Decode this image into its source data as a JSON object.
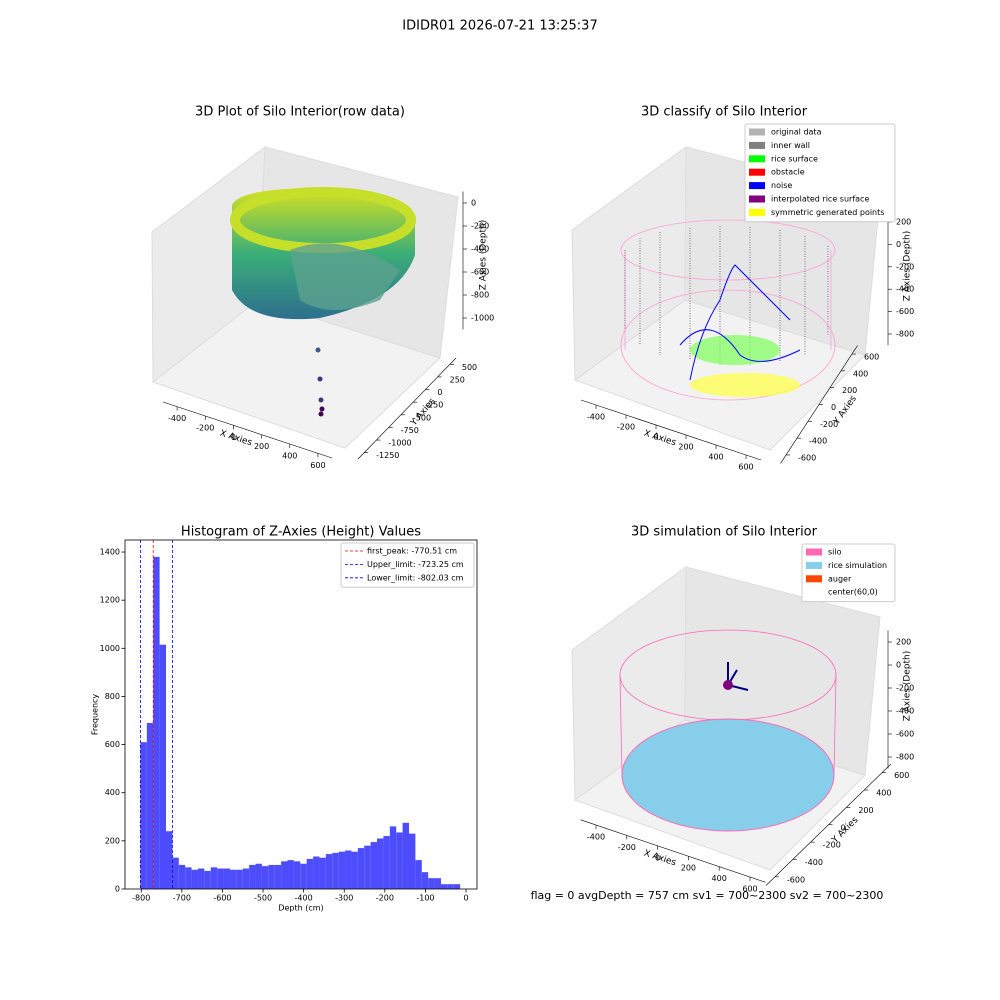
{
  "title": "IDIDR01 2026-07-21 13:25:37",
  "footer": "flag = 0     avgDepth = 757 cm  sv1 = 700~2300  sv2 = 700~2300",
  "chart_data": [
    {
      "type": "scatter3d",
      "title": "3D Plot of Silo Interior(row data)",
      "xlabel": "X Axies",
      "ylabel": "Y Axies",
      "zlabel": "Z Axies (Depth)",
      "xlim": [
        -500,
        700
      ],
      "ylim": [
        625,
        -1375
      ],
      "zlim": [
        100,
        -1100
      ],
      "xticks": [
        -400,
        -200,
        0,
        200,
        400,
        600
      ],
      "yticks": [
        500,
        250,
        0,
        -250,
        -500,
        -750,
        -1000,
        -1250
      ],
      "zticks": [
        0,
        -200,
        -400,
        -600,
        -800,
        -1000
      ]
    },
    {
      "type": "scatter3d",
      "title": "3D classify of Silo Interior",
      "xlabel": "X Axies",
      "ylabel": "Y Axies",
      "zlabel": "Z Axies (Depth)",
      "xlim": [
        -500,
        700
      ],
      "ylim": [
        700,
        -700
      ],
      "zlim": [
        300,
        -900
      ],
      "xticks": [
        -400,
        -200,
        0,
        200,
        400,
        600
      ],
      "yticks": [
        600,
        400,
        200,
        0,
        -200,
        -400,
        -600
      ],
      "zticks": [
        200,
        0,
        -200,
        -400,
        -600,
        -800
      ],
      "legend": "upper right",
      "series": [
        {
          "name": "original data",
          "color": "#b3b3b3"
        },
        {
          "name": "inner wall",
          "color": "#808080"
        },
        {
          "name": "rice surface",
          "color": "#00ff00"
        },
        {
          "name": "obstacle",
          "color": "#ff0000"
        },
        {
          "name": "noise",
          "color": "#0000ff"
        },
        {
          "name": "interpolated rice surface",
          "color": "#800080"
        },
        {
          "name": "symmetric generated points",
          "color": "#ffff00"
        }
      ]
    },
    {
      "type": "histogram",
      "title": "Histogram of Z-Axies (Height) Values",
      "xlabel": "Depth (cm)",
      "ylabel": "Frequency",
      "color": "#4d4dff",
      "xlim": [
        -840,
        27
      ],
      "ylim": [
        0,
        1450
      ],
      "xticks": [
        -800,
        -700,
        -600,
        -500,
        -400,
        -300,
        -200,
        -100,
        0
      ],
      "yticks": [
        0,
        200,
        400,
        600,
        800,
        1000,
        1200,
        1400
      ],
      "legend": "upper right",
      "bins": [
        -802,
        -786.25,
        -770.5,
        -754.75,
        -739,
        -723.25,
        -707.5,
        -691.75,
        -676,
        -660.25,
        -644.5,
        -628.75,
        -613,
        -597.25,
        -581.5,
        -565.75,
        -550,
        -534.25,
        -518.5,
        -502.75,
        -487,
        -471.25,
        -455.5,
        -439.75,
        -424,
        -408.25,
        -392.5,
        -376.75,
        -361,
        -345.25,
        -329.5,
        -313.75,
        -298,
        -282.25,
        -266.5,
        -250.75,
        -235,
        -219.25,
        -203.5,
        -187.75,
        -172,
        -156.25,
        -140.5,
        -124.75,
        -109,
        -93.25,
        -77.5,
        -61.75,
        -46,
        -30.25,
        -14.5
      ],
      "values": [
        610,
        690,
        1380,
        1015,
        240,
        130,
        100,
        90,
        80,
        85,
        75,
        90,
        85,
        85,
        80,
        80,
        85,
        100,
        105,
        95,
        100,
        100,
        115,
        120,
        115,
        105,
        125,
        135,
        130,
        145,
        150,
        155,
        160,
        155,
        170,
        180,
        195,
        210,
        220,
        260,
        235,
        275,
        230,
        120,
        70,
        45,
        45,
        20,
        20,
        20
      ],
      "vlines": [
        {
          "value": -770.51,
          "label": "first_peak: -770.51 cm",
          "color": "#ff0000"
        },
        {
          "value": -723.25,
          "label": "Upper_limit: -723.25 cm",
          "color": "#0000ff"
        },
        {
          "value": -802.03,
          "label": "Lower_limit: -802.03 cm",
          "color": "#0000ff"
        }
      ]
    },
    {
      "type": "scatter3d",
      "title": "3D simulation of Silo Interior",
      "xlabel": "X Axies",
      "ylabel": "Y Axies",
      "zlabel": "Z Axies (Depth)",
      "xlim": [
        -500,
        700
      ],
      "ylim": [
        700,
        -700
      ],
      "zlim": [
        300,
        -900
      ],
      "xticks": [
        -400,
        -200,
        0,
        200,
        400,
        600
      ],
      "yticks": [
        600,
        400,
        200,
        0,
        -200,
        -400,
        -600
      ],
      "zticks": [
        200,
        0,
        -200,
        -400,
        -600,
        -800
      ],
      "legend": "upper right",
      "series": [
        {
          "name": "silo",
          "color": "#ff69b4"
        },
        {
          "name": "rice simulation",
          "color": "#87ceeb"
        },
        {
          "name": "auger",
          "color": "#ff4500"
        },
        {
          "name": "center(60,0)",
          "color": "#ffffff"
        }
      ]
    }
  ]
}
